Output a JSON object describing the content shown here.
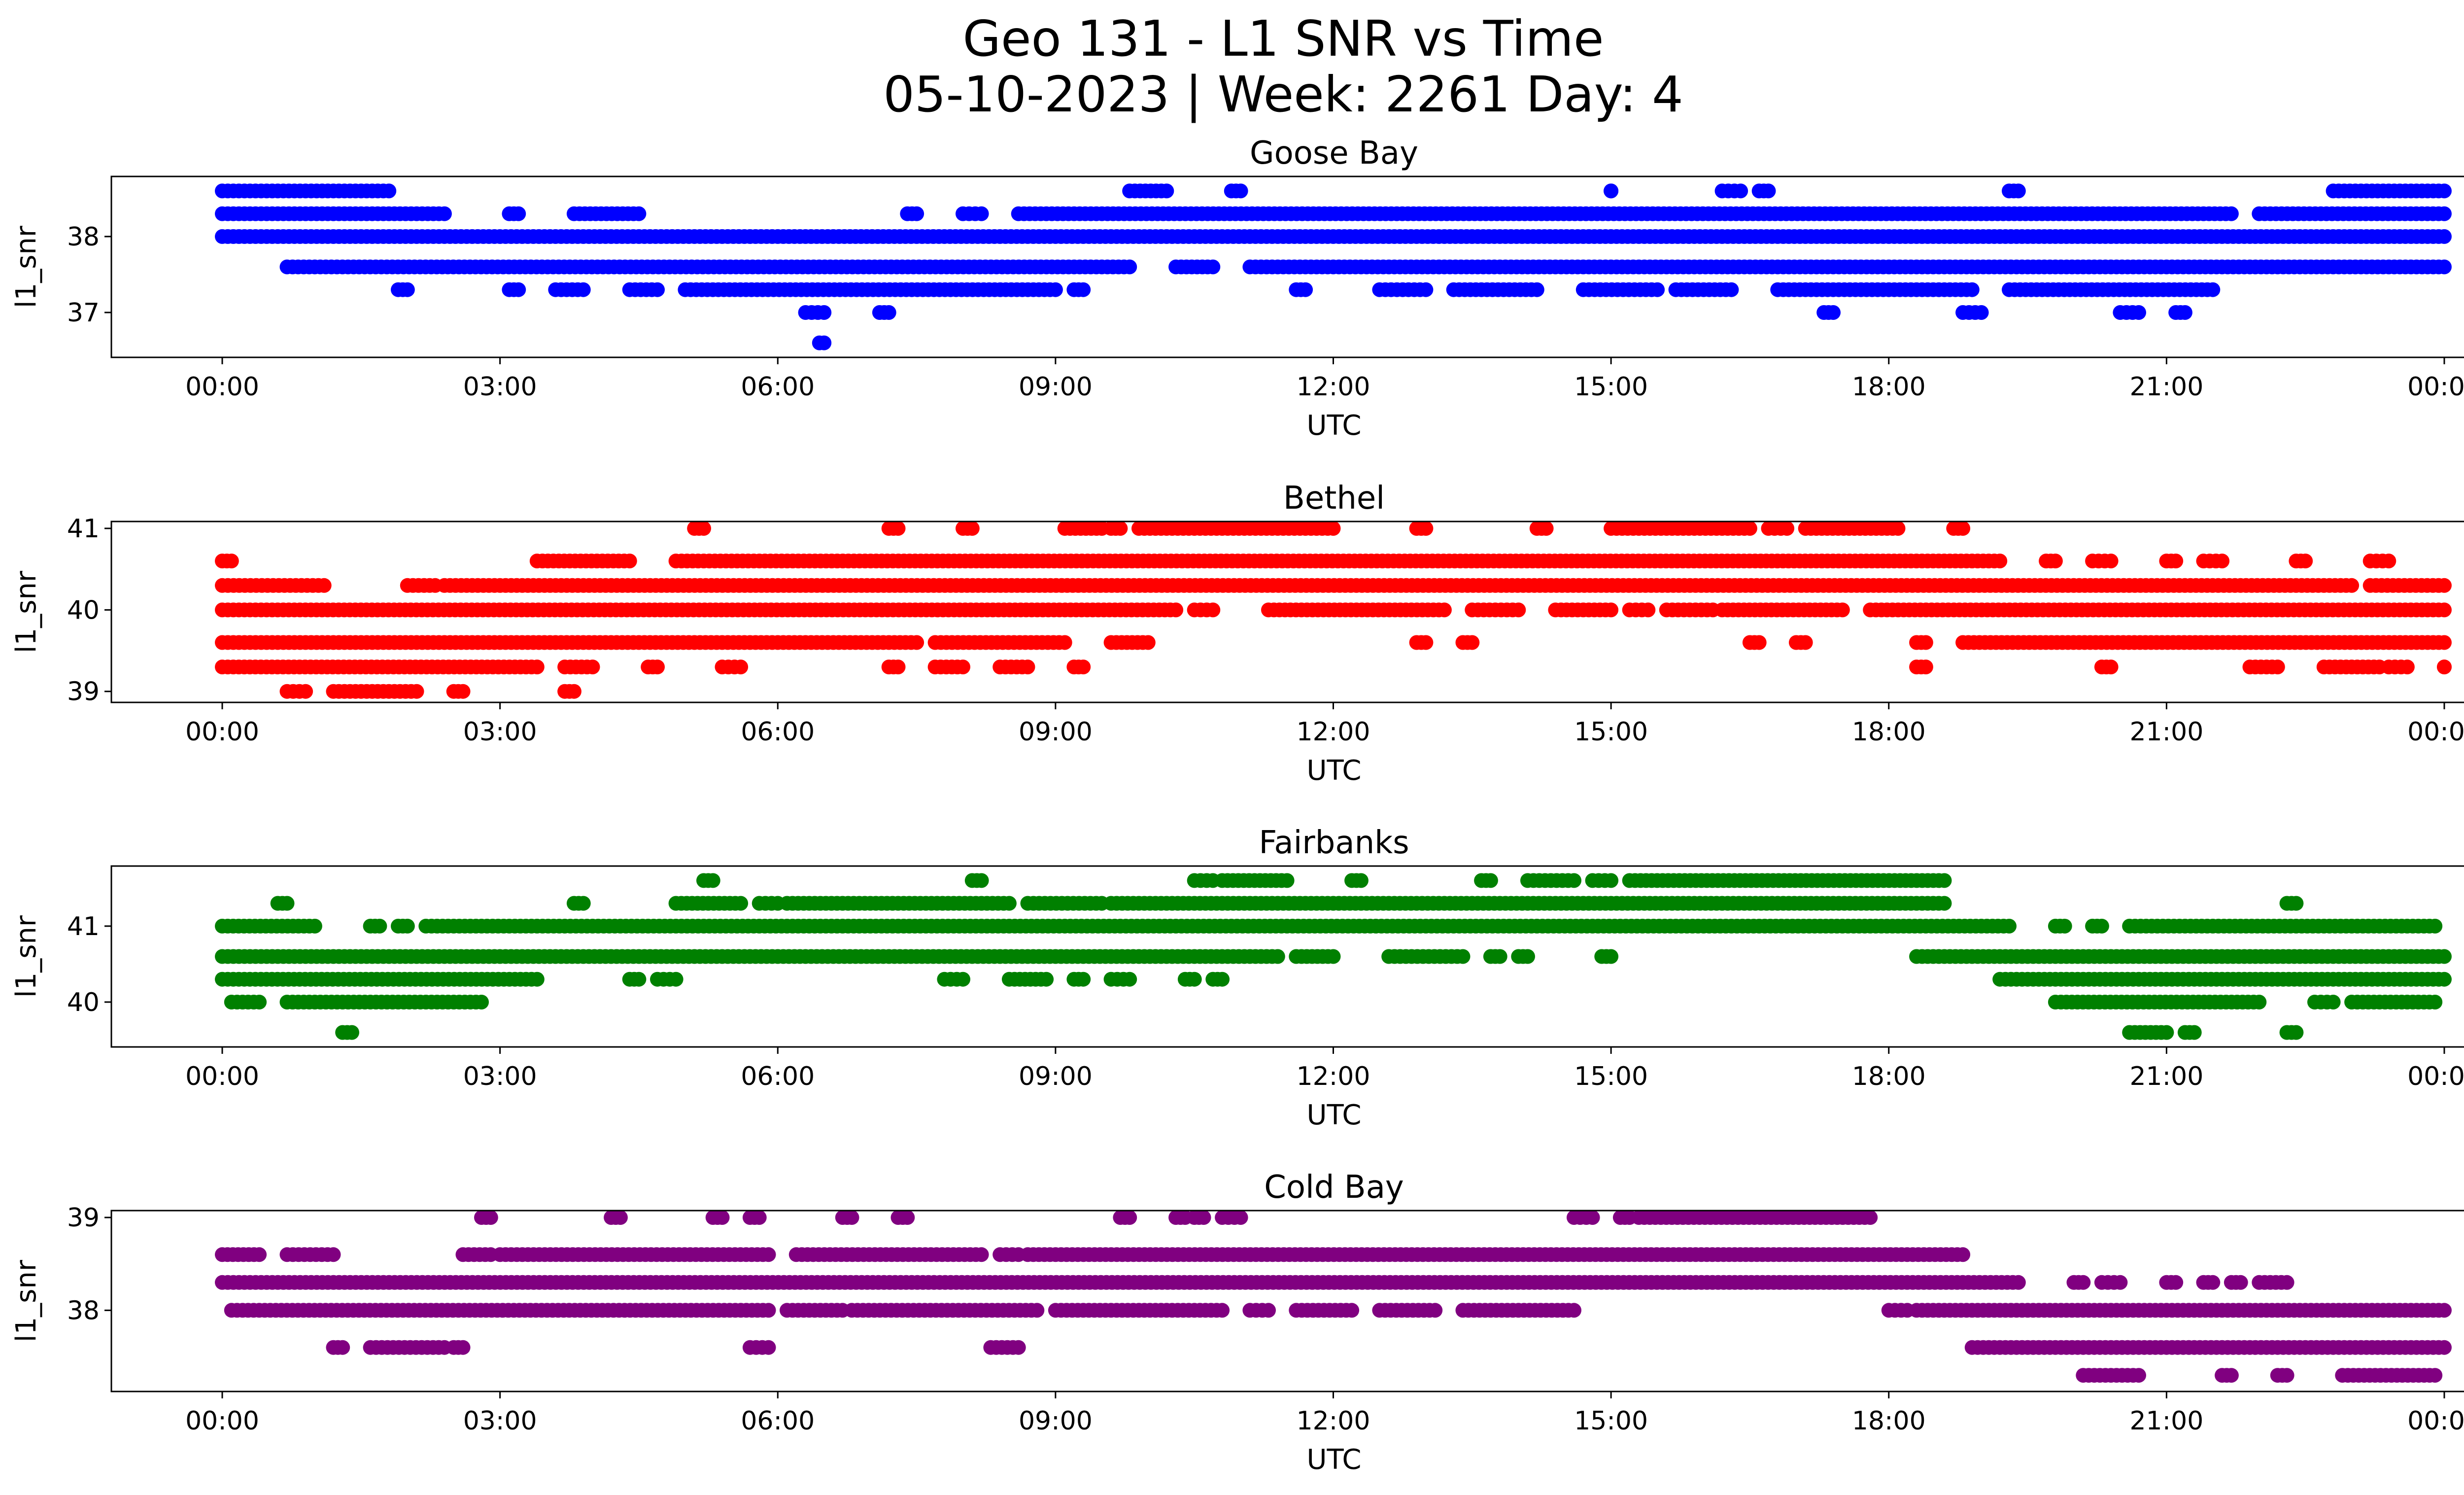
{
  "figure": {
    "title_line1": "Geo 131 - L1 SNR vs Time",
    "title_line2": "05-10-2023 | Week: 2261 Day: 4"
  },
  "chart_data": [
    {
      "type": "scatter",
      "title": "Goose Bay",
      "xlabel": "UTC",
      "ylabel": "l1_snr",
      "color": "#0000ff",
      "xlim": [
        "00:00",
        "24:00"
      ],
      "x_ticks": [
        "00:00",
        "03:00",
        "06:00",
        "09:00",
        "12:00",
        "15:00",
        "18:00",
        "21:00",
        "00:00"
      ],
      "ylim": [
        36.5,
        38.7
      ],
      "y_ticks": [
        37,
        38
      ],
      "levels": [
        {
          "y": 38.6,
          "segments": [
            [
              0.0,
              1.8
            ],
            [
              9.8,
              10.2
            ],
            [
              10.9,
              11.0
            ],
            [
              15.0,
              15.0
            ],
            [
              16.2,
              16.4
            ],
            [
              16.6,
              16.7
            ],
            [
              19.3,
              19.4
            ],
            [
              22.8,
              24.0
            ]
          ]
        },
        {
          "y": 38.3,
          "segments": [
            [
              0.0,
              2.4
            ],
            [
              3.1,
              3.2
            ],
            [
              3.8,
              4.5
            ],
            [
              7.4,
              7.5
            ],
            [
              8.0,
              8.2
            ],
            [
              8.6,
              21.7
            ],
            [
              22.0,
              24.0
            ]
          ]
        },
        {
          "y": 38.0,
          "segments": [
            [
              0.0,
              24.0
            ]
          ]
        },
        {
          "y": 37.6,
          "segments": [
            [
              0.7,
              9.8
            ],
            [
              10.3,
              10.7
            ],
            [
              11.1,
              24.0
            ]
          ]
        },
        {
          "y": 37.3,
          "segments": [
            [
              1.9,
              2.0
            ],
            [
              3.1,
              3.2
            ],
            [
              3.6,
              3.9
            ],
            [
              4.4,
              4.7
            ],
            [
              5.0,
              9.0
            ],
            [
              9.2,
              9.3
            ],
            [
              11.6,
              11.7
            ],
            [
              12.5,
              13.0
            ],
            [
              13.3,
              14.2
            ],
            [
              14.7,
              15.5
            ],
            [
              15.7,
              16.3
            ],
            [
              16.8,
              18.9
            ],
            [
              19.3,
              21.5
            ]
          ]
        },
        {
          "y": 37.0,
          "segments": [
            [
              6.3,
              6.5
            ],
            [
              7.1,
              7.2
            ],
            [
              17.3,
              17.4
            ],
            [
              18.8,
              19.0
            ],
            [
              20.5,
              20.7
            ],
            [
              21.1,
              21.2
            ]
          ]
        },
        {
          "y": 36.6,
          "segments": [
            [
              6.45,
              6.5
            ]
          ]
        }
      ]
    },
    {
      "type": "scatter",
      "title": "Bethel",
      "xlabel": "UTC",
      "ylabel": "l1_snr",
      "color": "#ff0000",
      "xlim": [
        "00:00",
        "24:00"
      ],
      "x_ticks": [
        "00:00",
        "03:00",
        "06:00",
        "09:00",
        "12:00",
        "15:00",
        "18:00",
        "21:00",
        "00:00"
      ],
      "ylim": [
        38.95,
        41.0
      ],
      "y_ticks": [
        39,
        40,
        41
      ],
      "levels": [
        {
          "y": 41.0,
          "segments": [
            [
              5.1,
              5.2
            ],
            [
              7.2,
              7.3
            ],
            [
              8.0,
              8.1
            ],
            [
              9.1,
              9.5
            ],
            [
              9.6,
              9.7
            ],
            [
              9.9,
              12.0
            ],
            [
              12.9,
              13.0
            ],
            [
              14.2,
              14.3
            ],
            [
              15.0,
              16.5
            ],
            [
              16.7,
              16.9
            ],
            [
              17.1,
              18.1
            ],
            [
              18.7,
              18.8
            ]
          ]
        },
        {
          "y": 40.6,
          "segments": [
            [
              0.0,
              0.1
            ],
            [
              3.4,
              4.4
            ],
            [
              4.9,
              19.2
            ],
            [
              19.7,
              19.8
            ],
            [
              20.2,
              20.4
            ],
            [
              21.0,
              21.1
            ],
            [
              21.4,
              21.6
            ],
            [
              22.4,
              22.5
            ],
            [
              23.2,
              23.4
            ]
          ]
        },
        {
          "y": 40.3,
          "segments": [
            [
              0.0,
              1.1
            ],
            [
              2.0,
              2.3
            ],
            [
              2.4,
              23.0
            ],
            [
              23.2,
              24.0
            ]
          ]
        },
        {
          "y": 40.0,
          "segments": [
            [
              0.0,
              10.3
            ],
            [
              10.5,
              10.7
            ],
            [
              11.3,
              13.2
            ],
            [
              13.5,
              14.0
            ],
            [
              14.4,
              15.0
            ],
            [
              15.2,
              15.4
            ],
            [
              15.6,
              16.1
            ],
            [
              16.2,
              17.5
            ],
            [
              17.8,
              24.0
            ]
          ]
        },
        {
          "y": 39.6,
          "segments": [
            [
              0.0,
              7.5
            ],
            [
              7.7,
              9.1
            ],
            [
              9.6,
              10.0
            ],
            [
              12.9,
              13.0
            ],
            [
              13.4,
              13.5
            ],
            [
              16.5,
              16.6
            ],
            [
              17.0,
              17.1
            ],
            [
              18.3,
              18.4
            ],
            [
              18.8,
              24.0
            ]
          ]
        },
        {
          "y": 39.3,
          "segments": [
            [
              0.0,
              3.4
            ],
            [
              3.7,
              4.0
            ],
            [
              4.6,
              4.7
            ],
            [
              5.4,
              5.6
            ],
            [
              7.2,
              7.3
            ],
            [
              7.7,
              8.0
            ],
            [
              8.4,
              8.7
            ],
            [
              9.2,
              9.3
            ],
            [
              18.3,
              18.4
            ],
            [
              20.3,
              20.4
            ],
            [
              21.9,
              22.2
            ],
            [
              22.7,
              23.3
            ],
            [
              23.4,
              23.6
            ],
            [
              24.0,
              24.0
            ]
          ]
        },
        {
          "y": 39.0,
          "segments": [
            [
              0.7,
              0.9
            ],
            [
              1.2,
              2.1
            ],
            [
              2.5,
              2.6
            ],
            [
              3.7,
              3.8
            ]
          ]
        }
      ]
    },
    {
      "type": "scatter",
      "title": "Fairbanks",
      "xlabel": "UTC",
      "ylabel": "l1_snr",
      "color": "#008000",
      "xlim": [
        "00:00",
        "24:00"
      ],
      "x_ticks": [
        "00:00",
        "03:00",
        "06:00",
        "09:00",
        "12:00",
        "15:00",
        "18:00",
        "21:00",
        "00:00"
      ],
      "ylim": [
        39.5,
        41.7
      ],
      "y_ticks": [
        40,
        41
      ],
      "levels": [
        {
          "y": 41.6,
          "segments": [
            [
              5.2,
              5.3
            ],
            [
              8.1,
              8.2
            ],
            [
              10.5,
              10.7
            ],
            [
              10.8,
              11.5
            ],
            [
              12.2,
              12.3
            ],
            [
              13.6,
              13.7
            ],
            [
              14.1,
              14.6
            ],
            [
              14.8,
              15.0
            ],
            [
              15.2,
              18.6
            ]
          ]
        },
        {
          "y": 41.3,
          "segments": [
            [
              0.6,
              0.7
            ],
            [
              3.8,
              3.9
            ],
            [
              4.9,
              5.6
            ],
            [
              5.8,
              6.0
            ],
            [
              6.1,
              8.5
            ],
            [
              8.7,
              9.5
            ],
            [
              9.6,
              18.6
            ],
            [
              22.3,
              22.4
            ]
          ]
        },
        {
          "y": 41.0,
          "segments": [
            [
              0.0,
              1.0
            ],
            [
              1.6,
              1.7
            ],
            [
              1.9,
              2.0
            ],
            [
              2.2,
              19.3
            ],
            [
              19.8,
              19.9
            ],
            [
              20.2,
              20.3
            ],
            [
              20.6,
              23.9
            ]
          ]
        },
        {
          "y": 40.6,
          "segments": [
            [
              0.0,
              11.4
            ],
            [
              11.6,
              12.0
            ],
            [
              12.6,
              13.4
            ],
            [
              13.7,
              13.8
            ],
            [
              14.0,
              14.1
            ],
            [
              14.9,
              15.0
            ],
            [
              18.3,
              24.0
            ]
          ]
        },
        {
          "y": 40.3,
          "segments": [
            [
              0.0,
              3.4
            ],
            [
              4.4,
              4.5
            ],
            [
              4.7,
              4.9
            ],
            [
              7.8,
              8.0
            ],
            [
              8.5,
              8.9
            ],
            [
              9.2,
              9.3
            ],
            [
              9.6,
              9.8
            ],
            [
              10.4,
              10.5
            ],
            [
              10.7,
              10.8
            ],
            [
              19.2,
              24.0
            ]
          ]
        },
        {
          "y": 40.0,
          "segments": [
            [
              0.1,
              0.4
            ],
            [
              0.7,
              2.8
            ],
            [
              19.8,
              22.0
            ],
            [
              22.6,
              22.8
            ],
            [
              23.0,
              23.9
            ]
          ]
        },
        {
          "y": 39.6,
          "segments": [
            [
              1.3,
              1.4
            ],
            [
              20.6,
              21.0
            ],
            [
              21.2,
              21.3
            ],
            [
              22.3,
              22.4
            ]
          ]
        }
      ]
    },
    {
      "type": "scatter",
      "title": "Cold Bay",
      "xlabel": "UTC",
      "ylabel": "l1_snr",
      "color": "#800080",
      "xlim": [
        "00:00",
        "24:00"
      ],
      "x_ticks": [
        "00:00",
        "03:00",
        "06:00",
        "09:00",
        "12:00",
        "15:00",
        "18:00",
        "21:00",
        "00:00"
      ],
      "ylim": [
        37.2,
        39.0
      ],
      "y_ticks": [
        38,
        39
      ],
      "levels": [
        {
          "y": 39.0,
          "segments": [
            [
              2.8,
              2.9
            ],
            [
              4.2,
              4.3
            ],
            [
              5.3,
              5.4
            ],
            [
              5.7,
              5.8
            ],
            [
              6.7,
              6.8
            ],
            [
              7.3,
              7.4
            ],
            [
              9.7,
              9.8
            ],
            [
              10.3,
              10.4
            ],
            [
              10.5,
              10.6
            ],
            [
              10.8,
              11.0
            ],
            [
              14.6,
              14.8
            ],
            [
              15.1,
              15.2
            ],
            [
              15.3,
              17.8
            ]
          ]
        },
        {
          "y": 38.6,
          "segments": [
            [
              0.0,
              0.4
            ],
            [
              0.7,
              1.2
            ],
            [
              2.6,
              2.9
            ],
            [
              3.0,
              5.9
            ],
            [
              6.2,
              8.2
            ],
            [
              8.4,
              8.6
            ],
            [
              8.7,
              18.8
            ]
          ]
        },
        {
          "y": 38.3,
          "segments": [
            [
              0.0,
              19.4
            ],
            [
              20.0,
              20.1
            ],
            [
              20.3,
              20.5
            ],
            [
              21.0,
              21.1
            ],
            [
              21.4,
              21.5
            ],
            [
              21.7,
              21.8
            ],
            [
              22.0,
              22.3
            ]
          ]
        },
        {
          "y": 38.0,
          "segments": [
            [
              0.1,
              5.9
            ],
            [
              6.1,
              6.7
            ],
            [
              6.8,
              8.8
            ],
            [
              9.0,
              10.8
            ],
            [
              11.1,
              11.3
            ],
            [
              11.6,
              12.2
            ],
            [
              12.5,
              13.1
            ],
            [
              13.4,
              14.6
            ],
            [
              18.0,
              18.2
            ],
            [
              18.3,
              24.0
            ]
          ]
        },
        {
          "y": 37.6,
          "segments": [
            [
              1.2,
              1.3
            ],
            [
              1.6,
              2.4
            ],
            [
              2.5,
              2.6
            ],
            [
              5.7,
              5.9
            ],
            [
              8.3,
              8.6
            ],
            [
              18.9,
              24.0
            ]
          ]
        },
        {
          "y": 37.3,
          "segments": [
            [
              20.1,
              20.7
            ],
            [
              21.6,
              21.7
            ],
            [
              22.2,
              22.3
            ],
            [
              22.9,
              23.9
            ]
          ]
        }
      ]
    }
  ]
}
